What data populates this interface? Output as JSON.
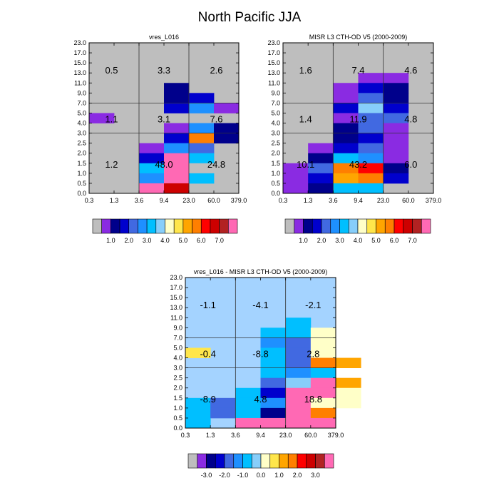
{
  "chart_data": [
    {
      "type": "heatmap",
      "id": "p1",
      "title": "vres_L016",
      "x_tick_labels": [
        "0.3",
        "1.3",
        "3.6",
        "9.4",
        "23.0",
        "60.0",
        "379.0"
      ],
      "y_tick_labels": [
        "0.0",
        "0.5",
        "1.0",
        "1.5",
        "2.0",
        "2.5",
        "3.0",
        "4.0",
        "5.0",
        "7.0",
        "9.0",
        "11.0",
        "13.0",
        "15.0",
        "17.0",
        "23.0"
      ],
      "background_color": "#bebebe",
      "cells": [
        {
          "col": 0,
          "row": 0,
          "color": "#bebebe"
        },
        {
          "col": 3,
          "row": 10,
          "color": "#00008b"
        },
        {
          "col": 3,
          "row": 9,
          "color": "#00008b"
        },
        {
          "col": 3,
          "row": 8,
          "color": "#0000cd"
        },
        {
          "col": 4,
          "row": 9,
          "color": "#0000cd"
        },
        {
          "col": 4,
          "row": 8,
          "color": "#1e90ff"
        },
        {
          "col": 5,
          "row": 8,
          "color": "#8a2be2"
        },
        {
          "col": 0,
          "row": 7,
          "color": "#8a2be2"
        },
        {
          "col": 3,
          "row": 6,
          "color": "#8a2be2"
        },
        {
          "col": 4,
          "row": 6,
          "color": "#1e90ff"
        },
        {
          "col": 5,
          "row": 6,
          "color": "#00008b"
        },
        {
          "col": 3,
          "row": 5,
          "color": "#0000cd"
        },
        {
          "col": 4,
          "row": 5,
          "color": "#ff7f00"
        },
        {
          "col": 5,
          "row": 5,
          "color": "#00008b"
        },
        {
          "col": 2,
          "row": 4,
          "color": "#8a2be2"
        },
        {
          "col": 3,
          "row": 4,
          "color": "#1e90ff"
        },
        {
          "col": 4,
          "row": 4,
          "color": "#4169e1"
        },
        {
          "col": 2,
          "row": 3,
          "color": "#0000cd"
        },
        {
          "col": 3,
          "row": 3,
          "color": "#ff69b4"
        },
        {
          "col": 4,
          "row": 3,
          "color": "#00bfff"
        },
        {
          "col": 2,
          "row": 2,
          "color": "#00bfff"
        },
        {
          "col": 3,
          "row": 2,
          "color": "#ff69b4"
        },
        {
          "col": 4,
          "row": 2,
          "color": "#bebebe"
        },
        {
          "col": 2,
          "row": 1,
          "color": "#1e90ff"
        },
        {
          "col": 3,
          "row": 1,
          "color": "#ff69b4"
        },
        {
          "col": 4,
          "row": 1,
          "color": "#00bfff"
        },
        {
          "col": 2,
          "row": 0,
          "color": "#ff69b4"
        },
        {
          "col": 3,
          "row": 0,
          "color": "#cd0000"
        }
      ],
      "annotations": [
        {
          "text": "0.5",
          "x": 0.15,
          "y": 0.82
        },
        {
          "text": "3.3",
          "x": 0.5,
          "y": 0.82
        },
        {
          "text": "2.6",
          "x": 0.85,
          "y": 0.82
        },
        {
          "text": "1.1",
          "x": 0.15,
          "y": 0.495
        },
        {
          "text": "3.1",
          "x": 0.5,
          "y": 0.495
        },
        {
          "text": "7.6",
          "x": 0.85,
          "y": 0.495
        },
        {
          "text": "1.2",
          "x": 0.15,
          "y": 0.195
        },
        {
          "text": "48.0",
          "x": 0.5,
          "y": 0.195
        },
        {
          "text": "24.8",
          "x": 0.85,
          "y": 0.195
        }
      ]
    },
    {
      "type": "heatmap",
      "id": "p2",
      "title": "MISR L3 CTH-OD V5 (2000-2009)",
      "x_tick_labels": [
        "0.3",
        "1.3",
        "3.6",
        "9.4",
        "23.0",
        "60.0",
        "379.0"
      ],
      "y_tick_labels": [
        "0.0",
        "0.5",
        "1.0",
        "1.5",
        "2.0",
        "2.5",
        "3.0",
        "4.0",
        "5.0",
        "7.0",
        "9.0",
        "11.0",
        "13.0",
        "15.0",
        "17.0",
        "23.0"
      ],
      "background_color": "#bebebe",
      "cells": [
        {
          "col": 3,
          "row": 11,
          "color": "#8a2be2"
        },
        {
          "col": 4,
          "row": 11,
          "color": "#8a2be2"
        },
        {
          "col": 2,
          "row": 10,
          "color": "#8a2be2"
        },
        {
          "col": 3,
          "row": 10,
          "color": "#0000cd"
        },
        {
          "col": 4,
          "row": 10,
          "color": "#00008b"
        },
        {
          "col": 2,
          "row": 9,
          "color": "#8a2be2"
        },
        {
          "col": 3,
          "row": 9,
          "color": "#4169e1"
        },
        {
          "col": 4,
          "row": 9,
          "color": "#00008b"
        },
        {
          "col": 2,
          "row": 8,
          "color": "#0000cd"
        },
        {
          "col": 3,
          "row": 8,
          "color": "#87cefa"
        },
        {
          "col": 4,
          "row": 8,
          "color": "#0000cd"
        },
        {
          "col": 2,
          "row": 7,
          "color": "#8a2be2"
        },
        {
          "col": 3,
          "row": 7,
          "color": "#4169e1"
        },
        {
          "col": 4,
          "row": 7,
          "color": "#4169e1"
        },
        {
          "col": 2,
          "row": 6,
          "color": "#00008b"
        },
        {
          "col": 3,
          "row": 6,
          "color": "#4169e1"
        },
        {
          "col": 4,
          "row": 6,
          "color": "#8a2be2"
        },
        {
          "col": 2,
          "row": 5,
          "color": "#00008b"
        },
        {
          "col": 3,
          "row": 5,
          "color": "#0000cd"
        },
        {
          "col": 4,
          "row": 5,
          "color": "#8a2be2"
        },
        {
          "col": 1,
          "row": 4,
          "color": "#8a2be2"
        },
        {
          "col": 2,
          "row": 4,
          "color": "#0000cd"
        },
        {
          "col": 3,
          "row": 4,
          "color": "#4169e1"
        },
        {
          "col": 4,
          "row": 4,
          "color": "#8a2be2"
        },
        {
          "col": 1,
          "row": 3,
          "color": "#00008b"
        },
        {
          "col": 2,
          "row": 3,
          "color": "#00bfff"
        },
        {
          "col": 3,
          "row": 3,
          "color": "#1e90ff"
        },
        {
          "col": 4,
          "row": 3,
          "color": "#8a2be2"
        },
        {
          "col": 0,
          "row": 2,
          "color": "#8a2be2"
        },
        {
          "col": 1,
          "row": 2,
          "color": "#4169e1"
        },
        {
          "col": 2,
          "row": 2,
          "color": "#ff7f00"
        },
        {
          "col": 3,
          "row": 2,
          "color": "#ff0000"
        },
        {
          "col": 4,
          "row": 2,
          "color": "#00008b"
        },
        {
          "col": 0,
          "row": 1,
          "color": "#8a2be2"
        },
        {
          "col": 1,
          "row": 1,
          "color": "#0000cd"
        },
        {
          "col": 2,
          "row": 1,
          "color": "#ffa500"
        },
        {
          "col": 3,
          "row": 1,
          "color": "#ff7f00"
        },
        {
          "col": 4,
          "row": 1,
          "color": "#0000cd"
        },
        {
          "col": 0,
          "row": 0,
          "color": "#8a2be2"
        },
        {
          "col": 1,
          "row": 0,
          "color": "#00008b"
        },
        {
          "col": 2,
          "row": 0,
          "color": "#00bfff"
        },
        {
          "col": 3,
          "row": 0,
          "color": "#00bfff"
        }
      ],
      "annotations": [
        {
          "text": "1.6",
          "x": 0.15,
          "y": 0.82
        },
        {
          "text": "7.4",
          "x": 0.5,
          "y": 0.82
        },
        {
          "text": "4.6",
          "x": 0.85,
          "y": 0.82
        },
        {
          "text": "1.4",
          "x": 0.15,
          "y": 0.495
        },
        {
          "text": "11.9",
          "x": 0.5,
          "y": 0.495
        },
        {
          "text": "4.8",
          "x": 0.85,
          "y": 0.495
        },
        {
          "text": "10.1",
          "x": 0.15,
          "y": 0.195
        },
        {
          "text": "43.2",
          "x": 0.5,
          "y": 0.195
        },
        {
          "text": "6.0",
          "x": 0.85,
          "y": 0.195
        }
      ]
    },
    {
      "type": "heatmap",
      "id": "p3",
      "title": "vres_L016 - MISR L3 CTH-OD V5 (2000-2009)",
      "x_tick_labels": [
        "0.3",
        "1.3",
        "3.6",
        "9.4",
        "23.0",
        "60.0",
        "379.0"
      ],
      "y_tick_labels": [
        "0.0",
        "0.5",
        "1.0",
        "1.5",
        "2.0",
        "2.5",
        "3.0",
        "4.0",
        "5.0",
        "7.0",
        "9.0",
        "11.0",
        "13.0",
        "15.0",
        "17.0",
        "23.0"
      ],
      "background_color": "#a4d3ff",
      "cells": [
        {
          "col": 4,
          "row": 10,
          "color": "#00bfff"
        },
        {
          "col": 3,
          "row": 9,
          "color": "#00bfff"
        },
        {
          "col": 4,
          "row": 9,
          "color": "#00bfff"
        },
        {
          "col": 5,
          "row": 9,
          "color": "#ffffc8"
        },
        {
          "col": 3,
          "row": 8,
          "color": "#1e90ff"
        },
        {
          "col": 4,
          "row": 8,
          "color": "#4169e1"
        },
        {
          "col": 5,
          "row": 8,
          "color": "#ffffc8"
        },
        {
          "col": 0,
          "row": 7,
          "color": "#ffe64b"
        },
        {
          "col": 3,
          "row": 7,
          "color": "#00bfff"
        },
        {
          "col": 4,
          "row": 7,
          "color": "#4169e1"
        },
        {
          "col": 5,
          "row": 7,
          "color": "#ffffc8"
        },
        {
          "col": 3,
          "row": 6,
          "color": "#00bfff"
        },
        {
          "col": 4,
          "row": 6,
          "color": "#4169e1"
        },
        {
          "col": 5,
          "row": 6,
          "color": "#ff7f00"
        },
        {
          "col": 6,
          "row": 6,
          "color": "#ffa500"
        },
        {
          "col": 3,
          "row": 5,
          "color": "#00bfff"
        },
        {
          "col": 4,
          "row": 5,
          "color": "#1e90ff"
        },
        {
          "col": 5,
          "row": 5,
          "color": "#00bfff"
        },
        {
          "col": 3,
          "row": 4,
          "color": "#4169e1"
        },
        {
          "col": 4,
          "row": 4,
          "color": "#87cefa"
        },
        {
          "col": 5,
          "row": 4,
          "color": "#ff69b4"
        },
        {
          "col": 6,
          "row": 4,
          "color": "#ffa500"
        },
        {
          "col": 2,
          "row": 3,
          "color": "#00bfff"
        },
        {
          "col": 3,
          "row": 3,
          "color": "#0000cd"
        },
        {
          "col": 4,
          "row": 3,
          "color": "#ff69b4"
        },
        {
          "col": 5,
          "row": 3,
          "color": "#ff69b4"
        },
        {
          "col": 6,
          "row": 3,
          "color": "#ffffc8"
        },
        {
          "col": 0,
          "row": 2,
          "color": "#00bfff"
        },
        {
          "col": 1,
          "row": 2,
          "color": "#4169e1"
        },
        {
          "col": 2,
          "row": 2,
          "color": "#00bfff"
        },
        {
          "col": 3,
          "row": 2,
          "color": "#1e90ff"
        },
        {
          "col": 4,
          "row": 2,
          "color": "#ff69b4"
        },
        {
          "col": 5,
          "row": 2,
          "color": "#ffffc8"
        },
        {
          "col": 6,
          "row": 2,
          "color": "#ffffc8"
        },
        {
          "col": 0,
          "row": 1,
          "color": "#00bfff"
        },
        {
          "col": 1,
          "row": 1,
          "color": "#4169e1"
        },
        {
          "col": 2,
          "row": 1,
          "color": "#00bfff"
        },
        {
          "col": 3,
          "row": 1,
          "color": "#00008b"
        },
        {
          "col": 4,
          "row": 1,
          "color": "#ff69b4"
        },
        {
          "col": 5,
          "row": 1,
          "color": "#ff7f00"
        },
        {
          "col": 0,
          "row": 0,
          "color": "#00bfff"
        },
        {
          "col": 2,
          "row": 0,
          "color": "#ff69b4"
        },
        {
          "col": 3,
          "row": 0,
          "color": "#ff69b4"
        },
        {
          "col": 4,
          "row": 0,
          "color": "#ff69b4"
        },
        {
          "col": 5,
          "row": 0,
          "color": "#ff69b4"
        }
      ],
      "annotations": [
        {
          "text": "-1.1",
          "x": 0.15,
          "y": 0.82
        },
        {
          "text": "-4.1",
          "x": 0.5,
          "y": 0.82
        },
        {
          "text": "-2.1",
          "x": 0.85,
          "y": 0.82
        },
        {
          "text": "-0.4",
          "x": 0.15,
          "y": 0.495
        },
        {
          "text": "-8.8",
          "x": 0.5,
          "y": 0.495
        },
        {
          "text": "2.8",
          "x": 0.85,
          "y": 0.495
        },
        {
          "text": "-8.9",
          "x": 0.15,
          "y": 0.195
        },
        {
          "text": "4.8",
          "x": 0.5,
          "y": 0.195
        },
        {
          "text": "18.8",
          "x": 0.85,
          "y": 0.195
        }
      ]
    }
  ],
  "figure": {
    "title": "North Pacific JJA",
    "colorbars": [
      {
        "id": "cb1",
        "colors": [
          "#bebebe",
          "#8a2be2",
          "#00008b",
          "#0000cd",
          "#4169e1",
          "#1e90ff",
          "#00bfff",
          "#87cefa",
          "#ffffc8",
          "#ffe64b",
          "#ffa500",
          "#ff7f00",
          "#ff0000",
          "#cd0000",
          "#b22222",
          "#ff69b4"
        ],
        "labels": [
          "1.0",
          "2.0",
          "3.0",
          "4.0",
          "5.0",
          "6.0",
          "7.0"
        ]
      },
      {
        "id": "cb2",
        "colors": [
          "#bebebe",
          "#8a2be2",
          "#00008b",
          "#0000cd",
          "#4169e1",
          "#1e90ff",
          "#00bfff",
          "#87cefa",
          "#ffffc8",
          "#ffe64b",
          "#ffa500",
          "#ff7f00",
          "#ff0000",
          "#cd0000",
          "#b22222",
          "#ff69b4"
        ],
        "labels": [
          "1.0",
          "2.0",
          "3.0",
          "4.0",
          "5.0",
          "6.0",
          "7.0"
        ]
      },
      {
        "id": "cb3",
        "colors": [
          "#bebebe",
          "#8a2be2",
          "#00008b",
          "#0000cd",
          "#4169e1",
          "#1e90ff",
          "#00bfff",
          "#87cefa",
          "#ffffc8",
          "#ffe64b",
          "#ffa500",
          "#ff7f00",
          "#ff0000",
          "#cd0000",
          "#b22222",
          "#ff69b4"
        ],
        "labels": [
          "-3.0",
          "-2.0",
          "-1.0",
          "0.0",
          "1.0",
          "2.0",
          "3.0"
        ]
      }
    ]
  }
}
